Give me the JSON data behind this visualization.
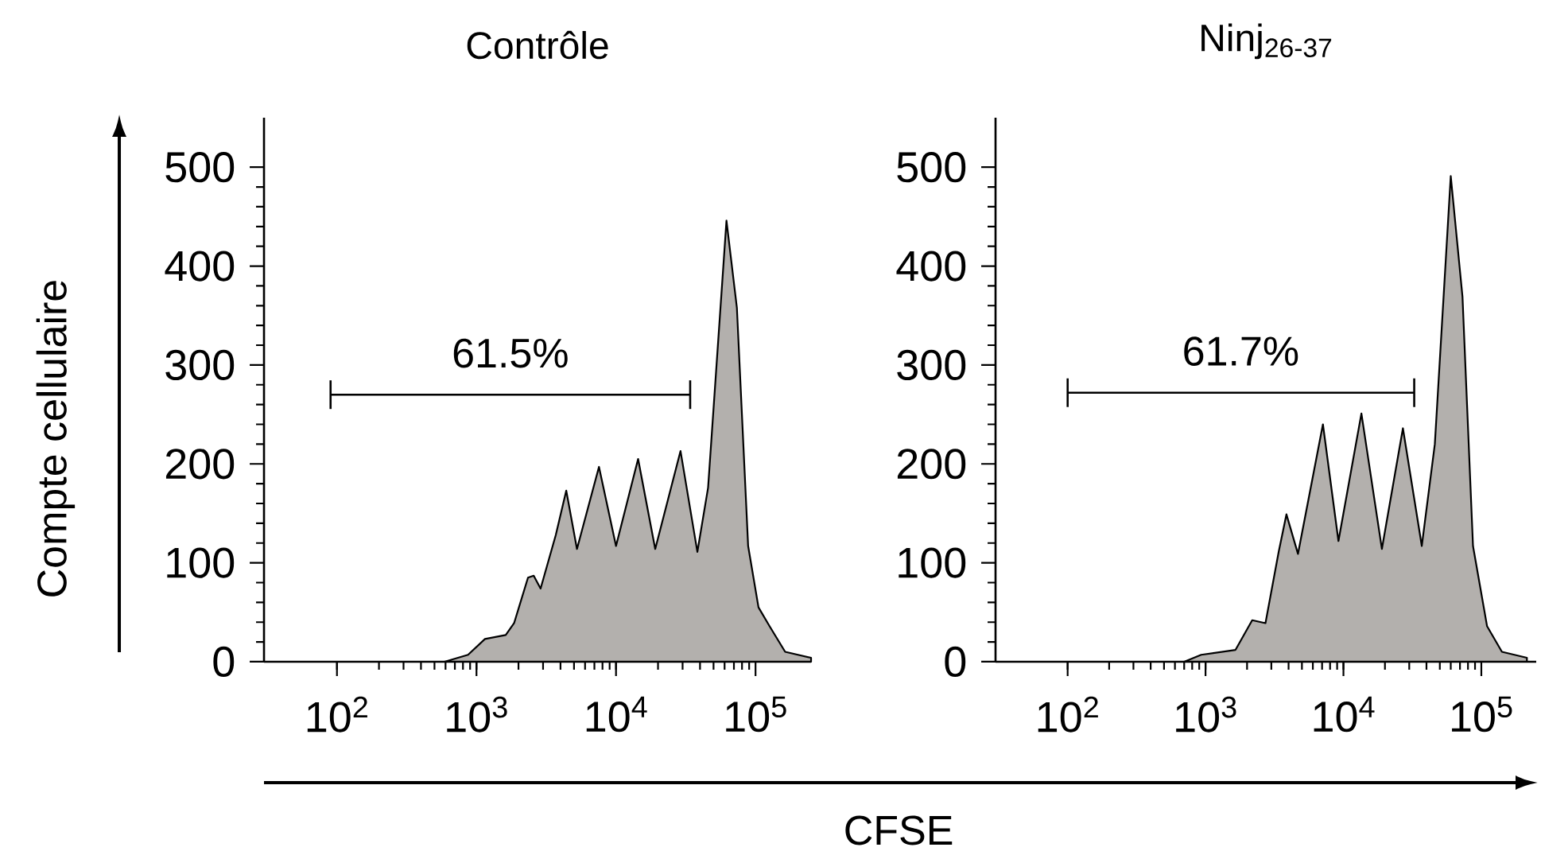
{
  "chart_data": [
    {
      "type": "area",
      "title": "Contrôle",
      "xlabel": "CFSE",
      "ylabel": "Compte cellulaire",
      "log": "x",
      "xlim": [
        30,
        250000
      ],
      "xticks": [
        {
          "value": 100,
          "label": "10$^{2}$"
        },
        {
          "value": 1000,
          "label": "10$^{3}$"
        },
        {
          "value": 10000,
          "label": "10$^{4}$"
        },
        {
          "value": 100000,
          "label": "10$^{5}$"
        }
      ],
      "ylim": [
        0,
        550
      ],
      "yticks": [
        0,
        100,
        200,
        300,
        400,
        500
      ],
      "series": [
        {
          "color": "#b3b0ad",
          "x": [
            590,
            870,
            1150,
            1620,
            1860,
            2340,
            2570,
            2880,
            3700,
            4400,
            5250,
            7550,
            10000,
            14400,
            19100,
            29000,
            38300,
            45700,
            61900,
            73500,
            88500,
            105000,
            126000,
            163000,
            250000
          ],
          "values": [
            0,
            7,
            23,
            27,
            39,
            85,
            87,
            74,
            128,
            173,
            114,
            197,
            117,
            205,
            114,
            213,
            111,
            176,
            446,
            358,
            117,
            55,
            36,
            10,
            4
          ]
        },
        {
          "type": "line",
          "color": "#000000",
          "x": [
            90,
            34000
          ],
          "values": [
            270,
            270
          ]
        }
      ],
      "annotations": [
        {
          "text": "61.5%",
          "x": 1750,
          "y": 270
        }
      ]
    },
    {
      "type": "area",
      "title": "Ninj$_{26-37}$",
      "log": "x",
      "xlim": [
        30,
        250000
      ],
      "xticks": [
        {
          "value": 100,
          "label": "10$^{2}$"
        },
        {
          "value": 1000,
          "label": "10$^{3}$"
        },
        {
          "value": 10000,
          "label": "10$^{4}$"
        },
        {
          "value": 100000,
          "label": "10$^{5}$"
        }
      ],
      "ylim": [
        0,
        550
      ],
      "yticks": [
        0,
        100,
        200,
        300,
        400,
        500
      ],
      "series": [
        {
          "color": "#b3b0ad",
          "x": [
            700,
            930,
            1650,
            2180,
            2720,
            3390,
            3860,
            4680,
            7100,
            9200,
            13500,
            19000,
            27000,
            37000,
            46000,
            60000,
            73000,
            87000,
            110000,
            141000,
            214000
          ],
          "values": [
            0,
            7,
            12,
            42,
            39,
            111,
            149,
            109,
            240,
            122,
            251,
            114,
            236,
            117,
            220,
            491,
            369,
            117,
            36,
            10,
            4
          ]
        },
        {
          "type": "line",
          "color": "#000000",
          "x": [
            100,
            32600
          ],
          "values": [
            272,
            272
          ]
        }
      ],
      "annotations": [
        {
          "text": "61.7%",
          "x": 1800,
          "y": 272
        }
      ]
    }
  ]
}
